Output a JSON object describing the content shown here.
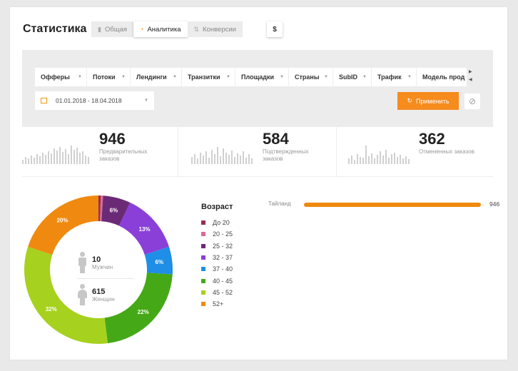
{
  "header": {
    "title": "Статистика",
    "tabs": [
      {
        "label": "Общая",
        "icon": "bar-chart-icon",
        "active": false
      },
      {
        "label": "Аналитика",
        "icon": "pie-chart-icon",
        "active": true
      },
      {
        "label": "Конверсии",
        "icon": "sort-icon",
        "active": false
      }
    ],
    "currency": "$"
  },
  "filters": {
    "items": [
      "Офферы",
      "Потоки",
      "Лендинги",
      "Транзитки",
      "Площадки",
      "Страны",
      "SubID",
      "Трафик",
      "Модель прод"
    ],
    "date_range": "01.01.2018 - 18.04.2018",
    "apply_label": "Применить",
    "accent": "#f68b1e"
  },
  "stats": [
    {
      "value": "946",
      "label": "Предварительных заказов"
    },
    {
      "value": "584",
      "label": "Подтвержденных заказов"
    },
    {
      "value": "362",
      "label": "Отмененных заказов"
    }
  ],
  "gender": {
    "male_count": "10",
    "male_label": "Мужчин",
    "female_count": "615",
    "female_label": "Женщин"
  },
  "chart_data": {
    "type": "pie",
    "donut": true,
    "legend_title": "Возраст",
    "legend_placement": "right",
    "categories": [
      "До 20",
      "20 - 25",
      "25 - 32",
      "32 - 37",
      "37 - 40",
      "40 - 45",
      "45 - 52",
      "52+"
    ],
    "values": [
      0.5,
      0.5,
      6,
      13,
      6,
      22,
      32,
      20
    ],
    "labels": [
      "",
      "",
      "6%",
      "13%",
      "6%",
      "22%",
      "32%",
      "20%"
    ],
    "colors": [
      "#9b2d4e",
      "#d96a9a",
      "#6b2a76",
      "#8a3fd8",
      "#1e8ee6",
      "#45a817",
      "#a6d11e",
      "#f0890f"
    ]
  },
  "countries": [
    {
      "name": "Тайланд",
      "value": "946",
      "fraction": 1.0
    }
  ]
}
